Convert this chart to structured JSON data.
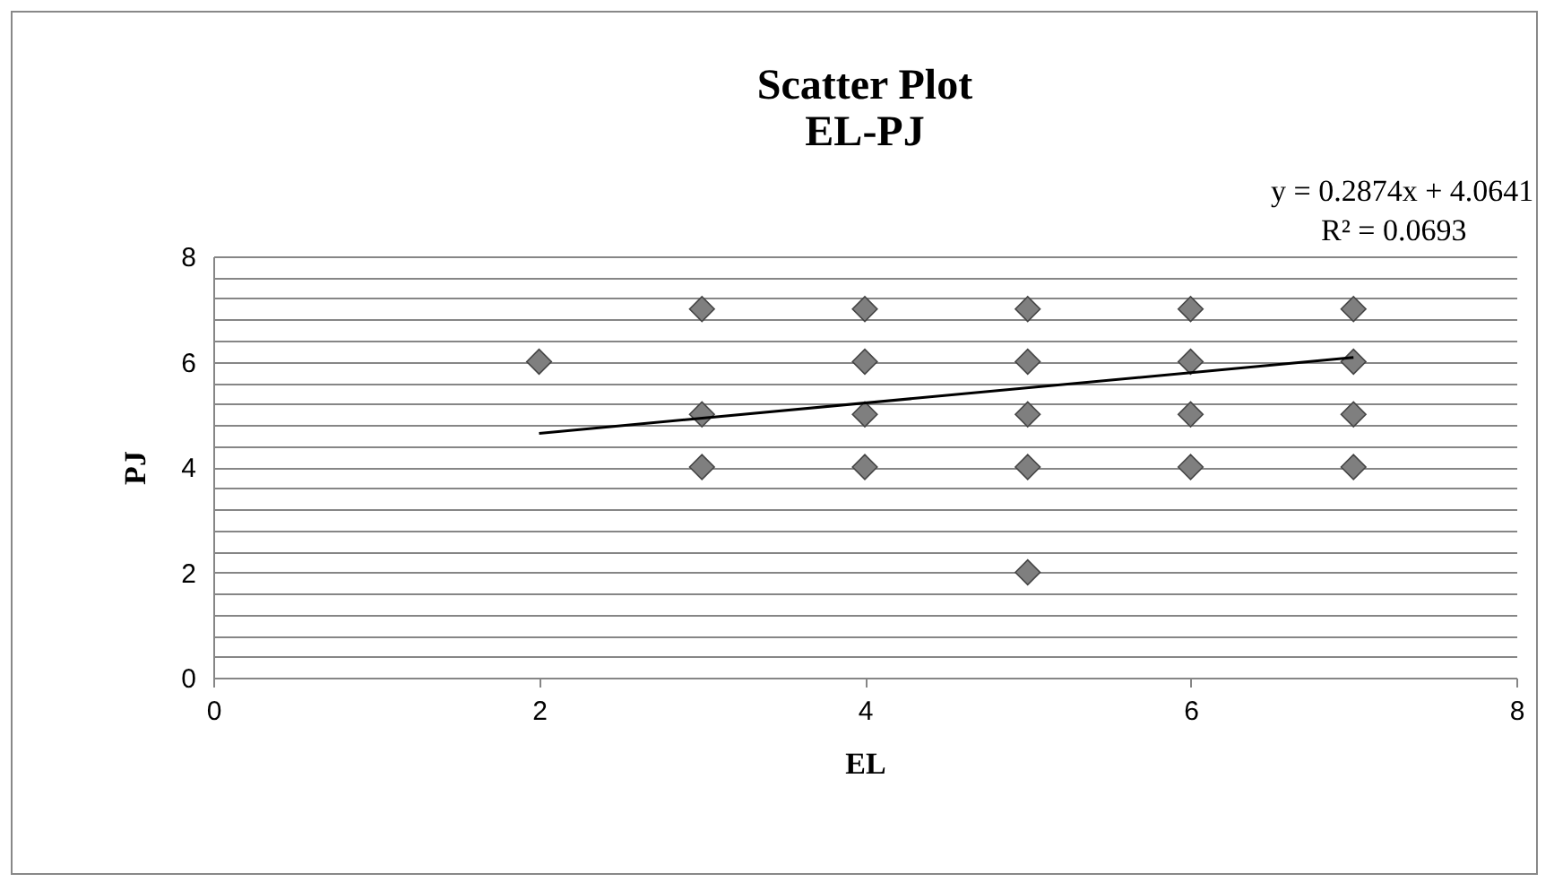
{
  "chart_data": {
    "type": "scatter",
    "title": "Scatter Plot",
    "subtitle": "EL-PJ",
    "xlabel": "EL",
    "ylabel": "PJ",
    "series": [
      {
        "type": "scatter",
        "color": "#7f7f7f",
        "x": [
          2,
          3,
          3,
          3,
          4,
          4,
          4,
          4,
          5,
          5,
          5,
          5,
          5,
          6,
          6,
          6,
          6,
          7,
          7,
          7,
          7
        ],
        "values": [
          6,
          7,
          5,
          4,
          7,
          6,
          5,
          4,
          7,
          6,
          5,
          4,
          2,
          7,
          6,
          5,
          4,
          7,
          6,
          5,
          4
        ]
      },
      {
        "type": "line",
        "color": "#000000",
        "marker": "none",
        "x": [
          2,
          7
        ],
        "values": [
          4.64,
          6.08
        ]
      }
    ],
    "annotations": [
      "y = 0.2874x + 4.0641",
      "R² = 0.0693"
    ],
    "xlim": [
      0,
      8
    ],
    "xticks": [
      0,
      2,
      4,
      6,
      8
    ],
    "ylim": [
      0,
      8
    ],
    "yticks": [
      0,
      {
        "value": 0.4,
        "label": null
      },
      {
        "value": 0.8,
        "label": null
      },
      {
        "value": 1.2,
        "label": null
      },
      {
        "value": 1.6,
        "label": null
      },
      2,
      {
        "value": 2.4,
        "label": null
      },
      {
        "value": 2.8,
        "label": null
      },
      {
        "value": 3.2,
        "label": null
      },
      {
        "value": 3.6,
        "label": null
      },
      4,
      {
        "value": 4.4,
        "label": null
      },
      {
        "value": 4.8,
        "label": null
      },
      {
        "value": 5.2,
        "label": null
      },
      {
        "value": 5.6,
        "label": null
      },
      6,
      {
        "value": 6.4,
        "label": null
      },
      {
        "value": 6.8,
        "label": null
      },
      {
        "value": 7.2,
        "label": null
      },
      {
        "value": 7.6,
        "label": null
      },
      8
    ],
    "grid": "y",
    "marker": "diamond",
    "line_style": "solid"
  }
}
